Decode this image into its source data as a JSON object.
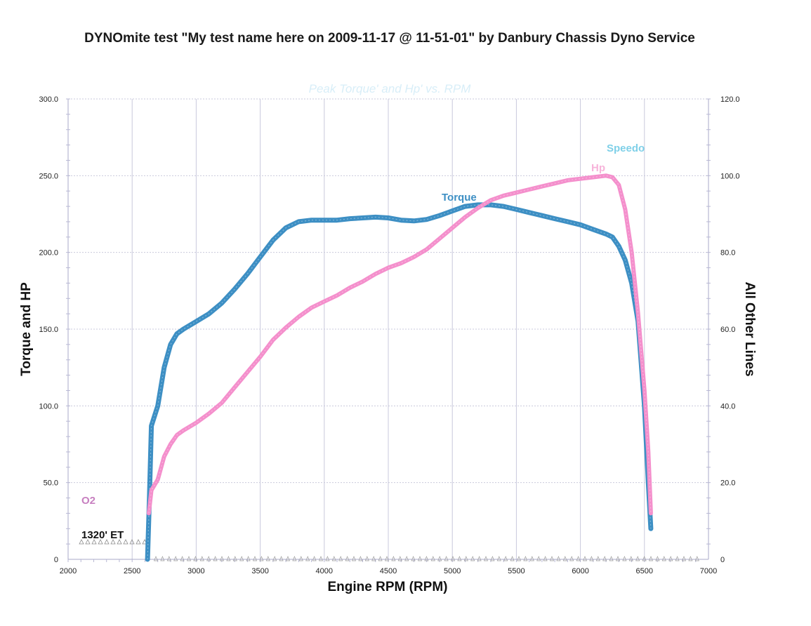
{
  "page": {
    "title": "DYNOmite test \"My test name here on 2009-11-17 @ 11-51-01\" by Danbury Chassis Dyno Service"
  },
  "chart_data": {
    "type": "line",
    "title": "DYNOmite test \"My test name here on 2009-11-17 @ 11-51-01\" by Danbury Chassis Dyno Service",
    "subtitle": "Peak Torque' and Hp' vs. RPM",
    "xlabel": "Engine RPM (RPM)",
    "ylabel": "Torque and HP",
    "y2label": "All Other Lines",
    "xlim": [
      2000,
      7000
    ],
    "ylim": [
      0,
      300
    ],
    "y2lim": [
      0,
      120
    ],
    "grid": true,
    "x_ticks": [
      "2000",
      "2500",
      "3000",
      "3500",
      "4000",
      "4500",
      "5000",
      "5500",
      "6000",
      "6500",
      "7000"
    ],
    "y_ticks": [
      "0",
      "50.0",
      "100.0",
      "150.0",
      "200.0",
      "250.0",
      "300.0"
    ],
    "y2_ticks": [
      "0",
      "20.0",
      "40.0",
      "60.0",
      "80.0",
      "100.0",
      "120.0"
    ],
    "series": [
      {
        "name": "Torque",
        "color": "#3d8fc4",
        "axis": "left",
        "x": [
          2620,
          2635,
          2650,
          2700,
          2750,
          2800,
          2850,
          2900,
          3000,
          3100,
          3200,
          3300,
          3400,
          3500,
          3600,
          3700,
          3800,
          3900,
          4000,
          4100,
          4200,
          4300,
          4400,
          4500,
          4600,
          4700,
          4800,
          4900,
          5000,
          5100,
          5200,
          5300,
          5400,
          5500,
          5600,
          5700,
          5800,
          5900,
          6000,
          6100,
          6200,
          6250,
          6300,
          6350,
          6400,
          6450,
          6500,
          6530,
          6550
        ],
        "values": [
          0,
          40,
          87,
          100,
          125,
          140,
          147,
          150,
          155,
          160,
          167,
          176,
          186,
          197,
          208,
          216,
          220,
          221,
          221,
          221,
          222,
          222.5,
          223,
          222.5,
          221,
          220.5,
          221.5,
          224,
          227,
          230,
          231,
          231,
          230,
          228,
          226,
          224,
          222,
          220,
          218,
          215,
          212,
          210,
          204,
          195,
          180,
          155,
          100,
          50,
          20
        ]
      },
      {
        "name": "Hp",
        "color": "#f48fcc",
        "axis": "left",
        "x": [
          2630,
          2650,
          2700,
          2750,
          2800,
          2850,
          2900,
          3000,
          3100,
          3200,
          3300,
          3400,
          3500,
          3600,
          3700,
          3800,
          3900,
          4000,
          4100,
          4200,
          4300,
          4400,
          4500,
          4600,
          4700,
          4800,
          4900,
          5000,
          5100,
          5200,
          5300,
          5400,
          5500,
          5600,
          5700,
          5800,
          5900,
          6000,
          6100,
          6200,
          6250,
          6300,
          6350,
          6400,
          6450,
          6500,
          6530,
          6550
        ],
        "values": [
          30,
          45,
          52,
          67,
          75,
          81,
          84,
          89,
          95,
          102,
          112,
          122,
          132,
          143,
          151,
          158,
          164,
          168,
          172,
          177,
          181,
          186,
          190,
          193,
          197,
          202,
          209,
          216,
          223,
          229,
          234,
          237,
          239,
          241,
          243,
          245,
          247,
          248,
          249,
          250,
          249,
          244,
          228,
          200,
          160,
          110,
          70,
          30
        ]
      }
    ],
    "annotations": [
      {
        "label": "Speedo",
        "color": "#7fd0e8"
      },
      {
        "label": "Hp",
        "color": "#f7b4da"
      },
      {
        "label": "Torque",
        "color": "#3d8fc4"
      },
      {
        "label": "O2",
        "color": "#c77fc0"
      },
      {
        "label": "1320' ET",
        "color": "#111111"
      }
    ]
  }
}
